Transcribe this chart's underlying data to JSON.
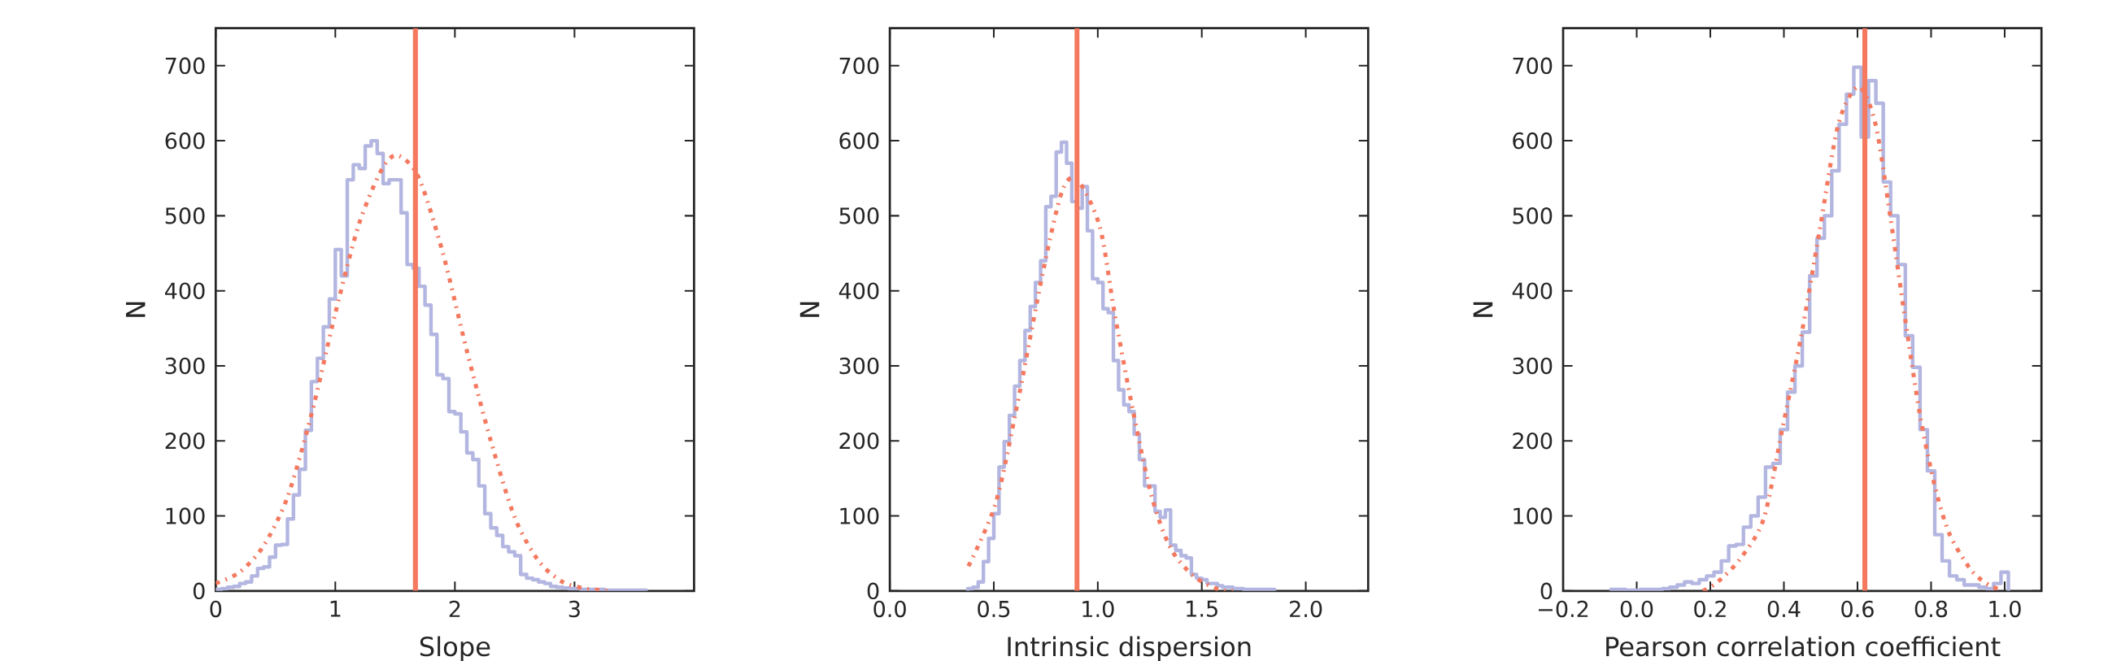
{
  "chart_data": [
    {
      "type": "histogram",
      "xlabel": "Slope",
      "ylabel": "N",
      "xlim": [
        0,
        4
      ],
      "ylim": [
        0,
        750
      ],
      "xticks": [
        0,
        1,
        2,
        3
      ],
      "yticks": [
        0,
        100,
        200,
        300,
        400,
        500,
        600,
        700
      ],
      "series": [
        {
          "color": "#b3b6e0",
          "bins": [
            0,
            0.05,
            0.1,
            0.15,
            0.2,
            0.25,
            0.3,
            0.35,
            0.4,
            0.45,
            0.5,
            0.55,
            0.6,
            0.65,
            0.7,
            0.75,
            0.8,
            0.85,
            0.9,
            0.95,
            1.0,
            1.05,
            1.1,
            1.15,
            1.2,
            1.25,
            1.3,
            1.35,
            1.4,
            1.45,
            1.5,
            1.55,
            1.6,
            1.65,
            1.7,
            1.75,
            1.8,
            1.85,
            1.9,
            1.95,
            2.0,
            2.05,
            2.1,
            2.15,
            2.2,
            2.25,
            2.3,
            2.35,
            2.4,
            2.45,
            2.5,
            2.55,
            2.6,
            2.65,
            2.7,
            2.75,
            2.8,
            2.85,
            2.9,
            2.95,
            3.0,
            3.05,
            3.1,
            3.15,
            3.2,
            3.25,
            3.3,
            3.35,
            3.4,
            3.45,
            3.5,
            3.55,
            3.6
          ],
          "values": [
            2,
            3,
            5,
            6,
            10,
            12,
            20,
            30,
            32,
            45,
            61,
            62,
            96,
            128,
            162,
            214,
            279,
            310,
            352,
            389,
            455,
            420,
            548,
            568,
            563,
            593,
            600,
            583,
            543,
            548,
            548,
            504,
            435,
            430,
            406,
            381,
            342,
            288,
            283,
            239,
            236,
            212,
            184,
            175,
            140,
            103,
            84,
            74,
            59,
            52,
            47,
            22,
            17,
            15,
            12,
            10,
            6,
            5,
            4,
            3,
            3,
            2,
            2,
            2,
            2,
            1,
            1,
            1,
            1,
            1,
            1,
            1
          ]
        },
        {
          "type": "line",
          "color": "#f4795f",
          "line_style": "dotted",
          "x": [
            0,
            0.2,
            0.4,
            0.6,
            0.8,
            1.0,
            1.2,
            1.4,
            1.53,
            1.7,
            1.9,
            2.1,
            2.3,
            2.5,
            2.7,
            2.9,
            3.1,
            3.3
          ],
          "values": [
            10,
            25,
            60,
            125,
            235,
            370,
            490,
            565,
            580,
            550,
            450,
            320,
            200,
            98,
            40,
            12,
            3,
            0
          ]
        }
      ],
      "ref_lines": [
        {
          "axis": "x",
          "value": 1.67,
          "color": "#f4795f"
        }
      ]
    },
    {
      "type": "histogram",
      "xlabel": "Intrinsic dispersion",
      "ylabel": "N",
      "xlim": [
        0,
        2.3
      ],
      "ylim": [
        0,
        750
      ],
      "xticks": [
        {
          "value": 0,
          "label": "0.0"
        },
        {
          "value": 0.5,
          "label": "0.5"
        },
        {
          "value": 1,
          "label": "1.0"
        },
        {
          "value": 1.5,
          "label": "1.5"
        },
        {
          "value": 2,
          "label": "2.0"
        }
      ],
      "yticks": [
        0,
        100,
        200,
        300,
        400,
        500,
        600,
        700
      ],
      "series": [
        {
          "color": "#b3b6e0",
          "bins": [
            0.375,
            0.4,
            0.425,
            0.45,
            0.475,
            0.5,
            0.525,
            0.55,
            0.575,
            0.6,
            0.625,
            0.65,
            0.675,
            0.7,
            0.725,
            0.75,
            0.775,
            0.8,
            0.825,
            0.85,
            0.875,
            0.9,
            0.925,
            0.95,
            0.975,
            1.0,
            1.025,
            1.05,
            1.075,
            1.1,
            1.125,
            1.15,
            1.175,
            1.2,
            1.225,
            1.25,
            1.275,
            1.3,
            1.325,
            1.35,
            1.375,
            1.4,
            1.425,
            1.45,
            1.475,
            1.5,
            1.525,
            1.55,
            1.575,
            1.6,
            1.625,
            1.65,
            1.675,
            1.7,
            1.725,
            1.75,
            1.775,
            1.8,
            1.825,
            1.85
          ],
          "values": [
            3,
            5,
            12,
            39,
            70,
            103,
            165,
            199,
            234,
            273,
            307,
            347,
            379,
            411,
            440,
            512,
            526,
            585,
            598,
            570,
            519,
            510,
            539,
            480,
            416,
            411,
            376,
            371,
            307,
            268,
            248,
            239,
            209,
            175,
            140,
            140,
            106,
            98,
            108,
            61,
            54,
            47,
            44,
            22,
            17,
            15,
            10,
            10,
            7,
            5,
            5,
            3,
            3,
            2,
            2,
            2,
            2,
            2,
            2
          ]
        },
        {
          "type": "line",
          "color": "#f4795f",
          "line_style": "dotted",
          "x": [
            0.378,
            0.508,
            0.606,
            0.74,
            0.83,
            0.902,
            1.01,
            1.08,
            1.17,
            1.26,
            1.35,
            1.46,
            1.58,
            1.65
          ],
          "values": [
            33,
            116,
            239,
            430,
            534,
            548,
            485,
            371,
            239,
            125,
            57,
            20,
            2,
            0
          ]
        }
      ],
      "ref_lines": [
        {
          "axis": "x",
          "value": 0.9,
          "color": "#f4795f"
        }
      ]
    },
    {
      "type": "histogram",
      "xlabel": "Pearson correlation coefficient",
      "ylabel": "N",
      "xlim": [
        -0.2,
        1.1
      ],
      "ylim": [
        0,
        750
      ],
      "xticks": [
        {
          "value": -0.2,
          "label": "−0.2"
        },
        {
          "value": 0,
          "label": "0.0"
        },
        {
          "value": 0.2,
          "label": "0.2"
        },
        {
          "value": 0.4,
          "label": "0.4"
        },
        {
          "value": 0.6,
          "label": "0.6"
        },
        {
          "value": 0.8,
          "label": "0.8"
        },
        {
          "value": 1,
          "label": "1.0"
        }
      ],
      "yticks": [
        0,
        100,
        200,
        300,
        400,
        500,
        600,
        700
      ],
      "series": [
        {
          "color": "#b3b6e0",
          "bins": [
            -0.07,
            -0.05,
            -0.03,
            -0.01,
            0.01,
            0.03,
            0.05,
            0.07,
            0.09,
            0.11,
            0.13,
            0.15,
            0.17,
            0.19,
            0.21,
            0.23,
            0.25,
            0.27,
            0.29,
            0.31,
            0.33,
            0.35,
            0.37,
            0.39,
            0.41,
            0.43,
            0.45,
            0.47,
            0.49,
            0.51,
            0.53,
            0.55,
            0.57,
            0.59,
            0.61,
            0.63,
            0.65,
            0.67,
            0.69,
            0.71,
            0.73,
            0.75,
            0.77,
            0.79,
            0.81,
            0.83,
            0.85,
            0.87,
            0.89,
            0.91,
            0.93,
            0.95,
            0.97,
            0.99,
            1.01
          ],
          "values": [
            2,
            2,
            1,
            1,
            2,
            2,
            2,
            3,
            5,
            8,
            12,
            10,
            15,
            20,
            25,
            40,
            60,
            62,
            85,
            100,
            125,
            165,
            170,
            215,
            265,
            300,
            345,
            420,
            470,
            500,
            560,
            622,
            662,
            698,
            605,
            680,
            650,
            545,
            500,
            435,
            340,
            298,
            215,
            160,
            75,
            40,
            20,
            15,
            8,
            8,
            5,
            3,
            10,
            25
          ]
        },
        {
          "type": "line",
          "color": "#f4795f",
          "line_style": "dotted",
          "x": [
            0.18,
            0.22,
            0.28,
            0.345,
            0.395,
            0.446,
            0.497,
            0.548,
            0.603,
            0.649,
            0.689,
            0.73,
            0.77,
            0.81,
            0.85,
            0.91,
            0.96,
            0.99
          ],
          "values": [
            0,
            12,
            42,
            96,
            214,
            337,
            480,
            622,
            672,
            622,
            499,
            361,
            234,
            140,
            76,
            27,
            7,
            2
          ]
        }
      ],
      "ref_lines": [
        {
          "axis": "x",
          "value": 0.62,
          "color": "#f4795f"
        }
      ]
    }
  ]
}
